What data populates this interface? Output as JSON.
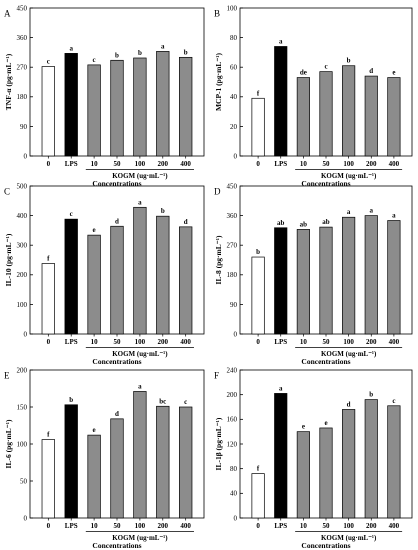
{
  "style": {
    "bar_control": "#ffffff",
    "bar_lps": "#000000",
    "bar_kogm": "#8c8c8c",
    "stroke": "#000000"
  },
  "chart_data": [
    {
      "panel": "A",
      "type": "bar",
      "ylabel": "TNF-α (pg·mL⁻¹)",
      "ylim": [
        0,
        450
      ],
      "yticks": [
        0,
        90,
        180,
        270,
        360,
        450
      ],
      "categories": [
        "0",
        "LPS",
        "10",
        "50",
        "100",
        "200",
        "400"
      ],
      "values": [
        272,
        312,
        277,
        291,
        298,
        318,
        300
      ],
      "significance": [
        "c",
        "a",
        "c",
        "b",
        "b",
        "a",
        "b"
      ],
      "group_label": "KOGM (ug·mL⁻¹)",
      "xlabel": "Concentrations"
    },
    {
      "panel": "B",
      "type": "bar",
      "ylabel": "MCP-1 (pg·mL⁻¹)",
      "ylim": [
        0,
        100
      ],
      "yticks": [
        0,
        20,
        40,
        60,
        80,
        100
      ],
      "categories": [
        "0",
        "LPS",
        "10",
        "50",
        "100",
        "200",
        "400"
      ],
      "values": [
        39,
        74,
        53,
        57,
        61,
        54,
        53
      ],
      "significance": [
        "f",
        "a",
        "de",
        "c",
        "b",
        "d",
        "e"
      ],
      "group_label": "KOGM (ug·mL⁻¹)",
      "xlabel": "Concentrations"
    },
    {
      "panel": "C",
      "type": "bar",
      "ylabel": "IL-10 (pg·mL⁻¹)",
      "ylim": [
        0,
        500
      ],
      "yticks": [
        0,
        100,
        200,
        300,
        400,
        500
      ],
      "categories": [
        "0",
        "LPS",
        "10",
        "50",
        "100",
        "200",
        "400"
      ],
      "values": [
        238,
        388,
        334,
        364,
        428,
        398,
        362
      ],
      "significance": [
        "f",
        "c",
        "e",
        "d",
        "a",
        "b",
        "d"
      ],
      "group_label": "KOGM (ug·mL⁻¹)",
      "xlabel": "Concentrations"
    },
    {
      "panel": "D",
      "type": "bar",
      "ylabel": "IL-8 (pg·mL⁻¹)",
      "ylim": [
        0,
        450
      ],
      "yticks": [
        0,
        90,
        180,
        270,
        360,
        450
      ],
      "categories": [
        "0",
        "LPS",
        "10",
        "50",
        "100",
        "200",
        "400"
      ],
      "values": [
        234,
        323,
        318,
        325,
        355,
        360,
        345
      ],
      "significance": [
        "b",
        "ab",
        "ab",
        "ab",
        "a",
        "a",
        "a"
      ],
      "group_label": "KOGM (ug·mL⁻¹)",
      "xlabel": "Concentrations"
    },
    {
      "panel": "E",
      "type": "bar",
      "ylabel": "IL-6 (pg·mL⁻¹)",
      "ylim": [
        0,
        200
      ],
      "yticks": [
        0,
        50,
        100,
        150,
        200
      ],
      "categories": [
        "0",
        "LPS",
        "10",
        "50",
        "100",
        "200",
        "400"
      ],
      "values": [
        106,
        153,
        112,
        134,
        171,
        151,
        150
      ],
      "significance": [
        "f",
        "b",
        "e",
        "d",
        "a",
        "bc",
        "c"
      ],
      "group_label": "KOGM (ug·mL⁻¹)",
      "xlabel": "Concentrations"
    },
    {
      "panel": "F",
      "type": "bar",
      "ylabel": "IL-1β (pg·mL⁻¹)",
      "ylim": [
        0,
        240
      ],
      "yticks": [
        0,
        40,
        80,
        120,
        160,
        200,
        240
      ],
      "categories": [
        "0",
        "LPS",
        "10",
        "50",
        "100",
        "200",
        "400"
      ],
      "values": [
        72,
        202,
        140,
        146,
        176,
        192,
        182
      ],
      "significance": [
        "f",
        "a",
        "e",
        "e",
        "d",
        "b",
        "c"
      ],
      "group_label": "KOGM (ug·mL⁻¹)",
      "xlabel": "Concentrations"
    }
  ]
}
